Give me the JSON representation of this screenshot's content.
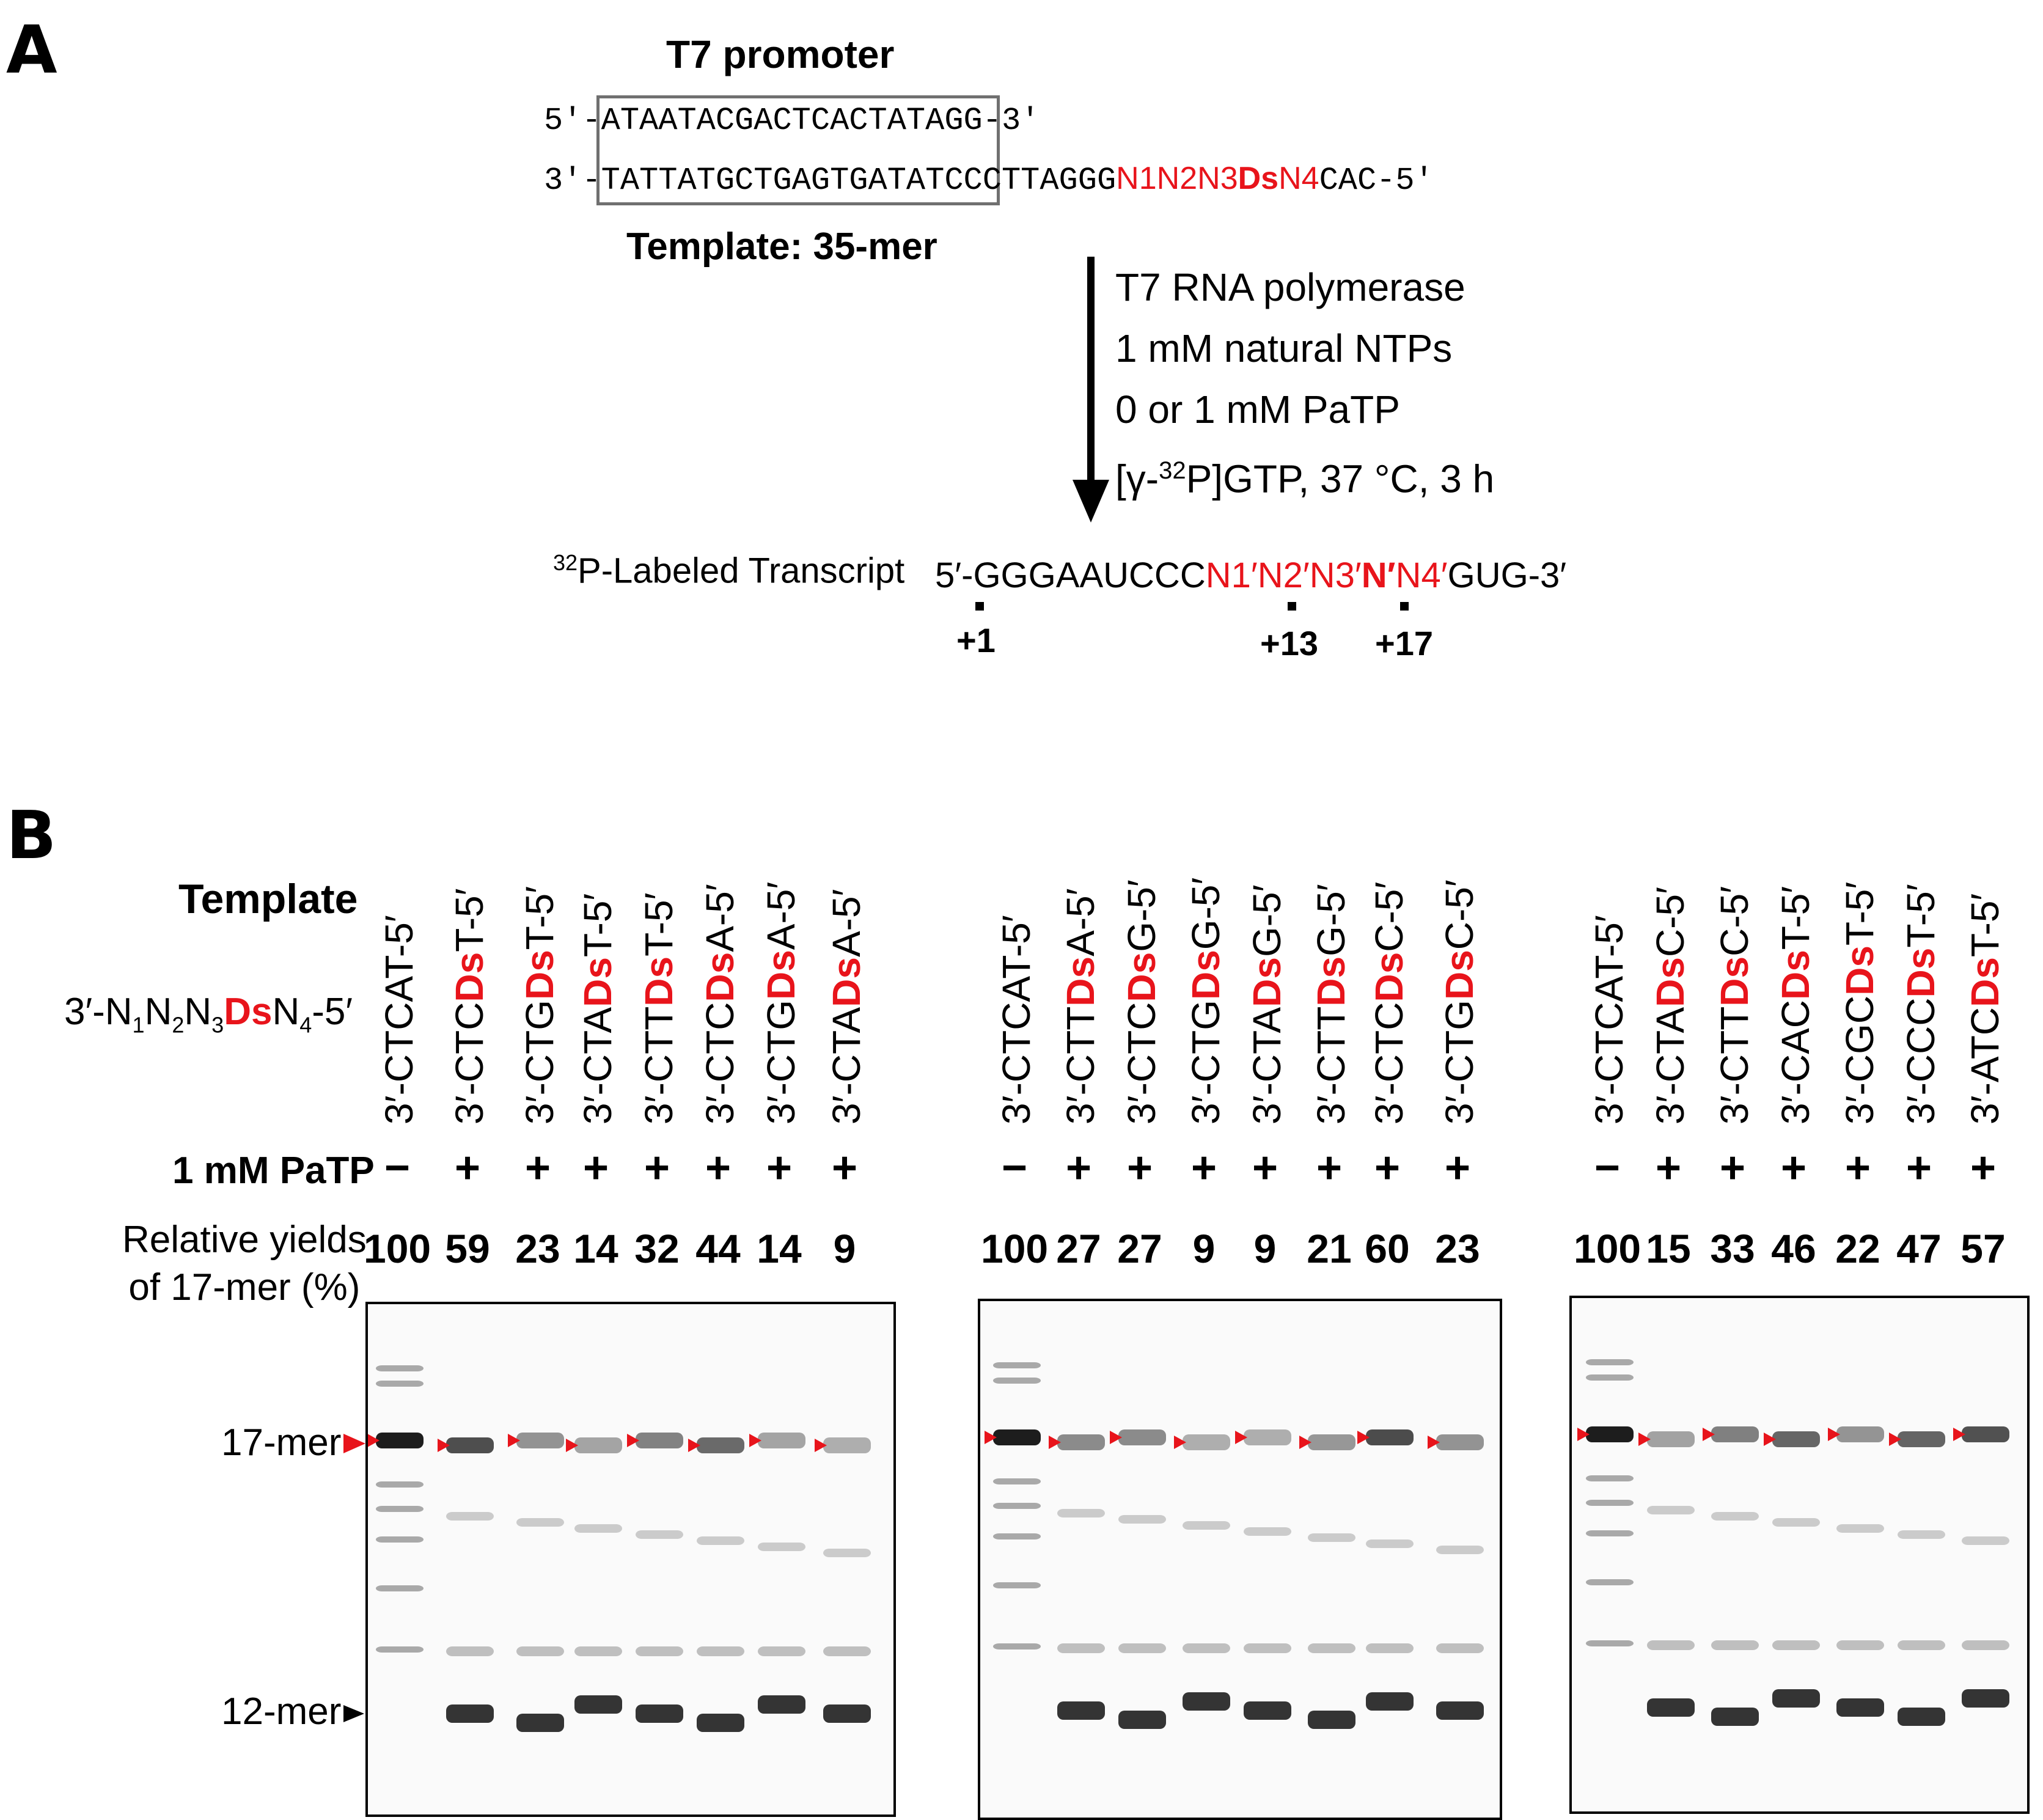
{
  "panel_a": {
    "letter": "A",
    "promoter_label": "T7 promoter",
    "top_strand": {
      "prefix": "5′-A",
      "boxed": "TAATACGACTCACTATAG",
      "suffix": "G-3′"
    },
    "bottom_strand": {
      "prefix": "3′-T",
      "boxed": "ATTATGCTGAGTGATATC",
      "middle": "CCTTAGGG",
      "n1": "N1",
      "n2": "N2",
      "n3": "N3",
      "ds": "Ds",
      "n4": "N4",
      "suffix": "CAC-5′"
    },
    "template_label": "Template: 35-mer",
    "conditions": {
      "line1": "T7 RNA polymerase",
      "line2": "1 mM natural NTPs",
      "line3": "0 or 1 mM PaTP",
      "line4_pre": "[γ-",
      "line4_sup": "32",
      "line4_post": "P]GTP, 37 °C, 3 h"
    },
    "transcript_label_sup": "32",
    "transcript_label": "P-Labeled Transcript",
    "transcript": {
      "prefix": "5′-GGGAAUCCC",
      "n1": "N1′",
      "n2": "N2′",
      "n3": "N3′",
      "n": "N′",
      "n4": "N4′",
      "suffix": "GUG-3′"
    },
    "positions": [
      "+1",
      "+13",
      "+17"
    ]
  },
  "panel_b": {
    "letter": "B",
    "template_label": "Template",
    "format_label": {
      "pre": "3′-N",
      "s1": "1",
      "m1": "N",
      "s2": "2",
      "m2": "N",
      "s3": "3",
      "ds": "Ds",
      "m4": "N",
      "s4": "4",
      "post": "-5′"
    },
    "patp_label": "1 mM PaTP",
    "yield_label_line1": "Relative yields",
    "yield_label_line2": "of 17-mer (%)",
    "marker_17": "17-mer",
    "marker_12": "12-mer",
    "colors": {
      "accent_red": "#e8141b",
      "text": "#000000"
    },
    "gel_groups": [
      {
        "lanes": [
          {
            "pre": "3′-CTCAT-5′",
            "ds": "",
            "post": "",
            "patp": "−",
            "yield": 100
          },
          {
            "pre": "3′-CTC",
            "ds": "Ds",
            "post": "T-5′",
            "patp": "+",
            "yield": 59
          },
          {
            "pre": "3′-CTG",
            "ds": "Ds",
            "post": "T-5′",
            "patp": "+",
            "yield": 23
          },
          {
            "pre": "3′-CTA",
            "ds": "Ds",
            "post": "T-5′",
            "patp": "+",
            "yield": 14
          },
          {
            "pre": "3′-CTT",
            "ds": "Ds",
            "post": "T-5′",
            "patp": "+",
            "yield": 32
          },
          {
            "pre": "3′-CTC",
            "ds": "Ds",
            "post": "A-5′",
            "patp": "+",
            "yield": 44
          },
          {
            "pre": "3′-CTG",
            "ds": "Ds",
            "post": "A-5′",
            "patp": "+",
            "yield": 14
          },
          {
            "pre": "3′-CTA",
            "ds": "Ds",
            "post": "A-5′",
            "patp": "+",
            "yield": 9
          }
        ]
      },
      {
        "lanes": [
          {
            "pre": "3′-CTCAT-5′",
            "ds": "",
            "post": "",
            "patp": "−",
            "yield": 100
          },
          {
            "pre": "3′-CTT",
            "ds": "Ds",
            "post": "A-5′",
            "patp": "+",
            "yield": 27
          },
          {
            "pre": "3′-CTC",
            "ds": "Ds",
            "post": "G-5′",
            "patp": "+",
            "yield": 27
          },
          {
            "pre": "3′-CTG",
            "ds": "Ds",
            "post": "G-5′",
            "patp": "+",
            "yield": 9
          },
          {
            "pre": "3′-CTA",
            "ds": "Ds",
            "post": "G-5′",
            "patp": "+",
            "yield": 9
          },
          {
            "pre": "3′-CTT",
            "ds": "Ds",
            "post": "G-5′",
            "patp": "+",
            "yield": 21
          },
          {
            "pre": "3′-CTC",
            "ds": "Ds",
            "post": "C-5′",
            "patp": "+",
            "yield": 60
          },
          {
            "pre": "3′-CTG",
            "ds": "Ds",
            "post": "C-5′",
            "patp": "+",
            "yield": 23
          }
        ]
      },
      {
        "lanes": [
          {
            "pre": "3′-CTCAT-5′",
            "ds": "",
            "post": "",
            "patp": "−",
            "yield": 100
          },
          {
            "pre": "3′-CTA",
            "ds": "Ds",
            "post": "C-5′",
            "patp": "+",
            "yield": 15
          },
          {
            "pre": "3′-CTT",
            "ds": "Ds",
            "post": "C-5′",
            "patp": "+",
            "yield": 33
          },
          {
            "pre": "3′-CAC",
            "ds": "Ds",
            "post": "T-5′",
            "patp": "+",
            "yield": 46
          },
          {
            "pre": "3′-CGC",
            "ds": "Ds",
            "post": "T-5′",
            "patp": "+",
            "yield": 22
          },
          {
            "pre": "3′-CCC",
            "ds": "Ds",
            "post": "T-5′",
            "patp": "+",
            "yield": 47
          },
          {
            "pre": "3′-ATC",
            "ds": "Ds",
            "post": "T-5′",
            "patp": "+",
            "yield": 57
          }
        ]
      }
    ]
  }
}
